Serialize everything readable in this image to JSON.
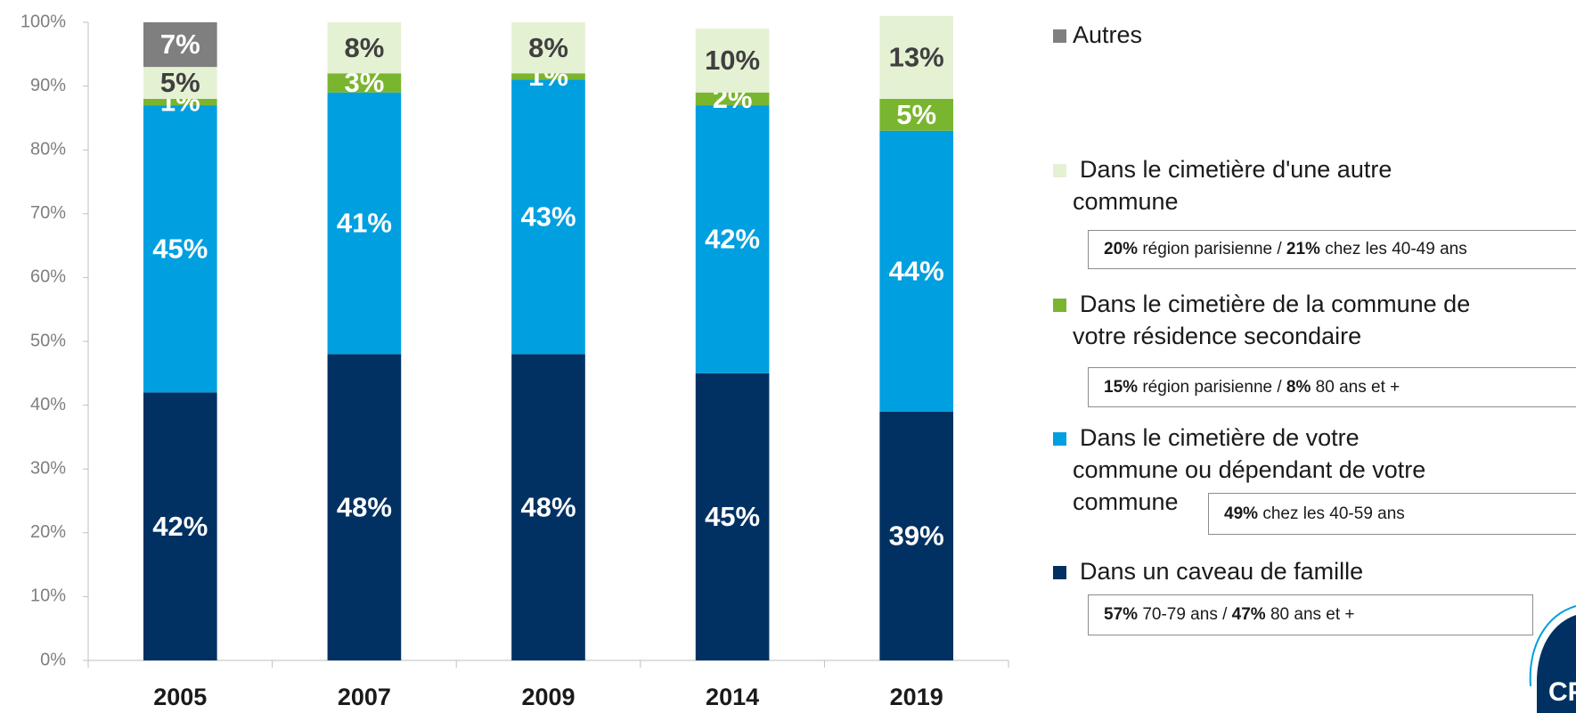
{
  "chart_data": {
    "type": "stacked_bar",
    "categories": [
      "2005",
      "2007",
      "2009",
      "2014",
      "2019"
    ],
    "series": [
      {
        "name": "Dans un caveau de famille",
        "color": "#003162",
        "label_color": "#ffffff",
        "values": [
          42,
          48,
          48,
          45,
          39
        ],
        "value_labels": [
          "42%",
          "48%",
          "48%",
          "45%",
          "39%"
        ],
        "note": [
          "57%",
          "70-79 ans /",
          "47%",
          "80 ans et +"
        ]
      },
      {
        "name": "Dans le cimetière de votre commune ou dépendant de votre commune",
        "color": "#009fe0",
        "label_color": "#ffffff",
        "values": [
          45,
          41,
          43,
          42,
          44
        ],
        "value_labels": [
          "45%",
          "41%",
          "43%",
          "42%",
          "44%"
        ],
        "note": [
          "49%",
          "chez les 40-59 ans"
        ]
      },
      {
        "name": "Dans le cimetière de la commune de votre résidence secondaire",
        "color": "#7ab52f",
        "label_color": "#ffffff",
        "values": [
          1,
          3,
          1,
          2,
          5
        ],
        "value_labels": [
          "1%",
          "3%",
          "1%",
          "2%",
          "5%"
        ],
        "note": [
          "15%",
          "région parisienne /",
          "8%",
          "80 ans et +"
        ]
      },
      {
        "name": "Dans le cimetière d'une autre commune",
        "color": "#e4f1d3",
        "label_color": "#404040",
        "values": [
          5,
          8,
          8,
          10,
          13
        ],
        "value_labels": [
          "5%",
          "8%",
          "8%",
          "10%",
          "13%"
        ],
        "note": [
          "20%",
          "région parisienne /",
          "21%",
          "chez les 40-49 ans"
        ]
      },
      {
        "name": "Autres",
        "color": "#7f7f7f",
        "label_color": "#ffffff",
        "values": [
          7,
          0,
          0,
          0,
          0
        ],
        "value_labels": [
          "7%",
          null,
          null,
          null,
          null
        ]
      }
    ],
    "ylim": [
      0,
      100
    ],
    "yticks": [
      {
        "value": 0,
        "label": "0%"
      },
      {
        "value": 10,
        "label": "10%"
      },
      {
        "value": 20,
        "label": "20%"
      },
      {
        "value": 30,
        "label": "30%"
      },
      {
        "value": 40,
        "label": "40%"
      },
      {
        "value": 50,
        "label": "50%"
      },
      {
        "value": 60,
        "label": "60%"
      },
      {
        "value": 70,
        "label": "70%"
      },
      {
        "value": 80,
        "label": "80%"
      },
      {
        "value": 90,
        "label": "90%"
      },
      {
        "value": 100,
        "label": "100%"
      }
    ],
    "grid": false,
    "logo_text": "CP"
  }
}
